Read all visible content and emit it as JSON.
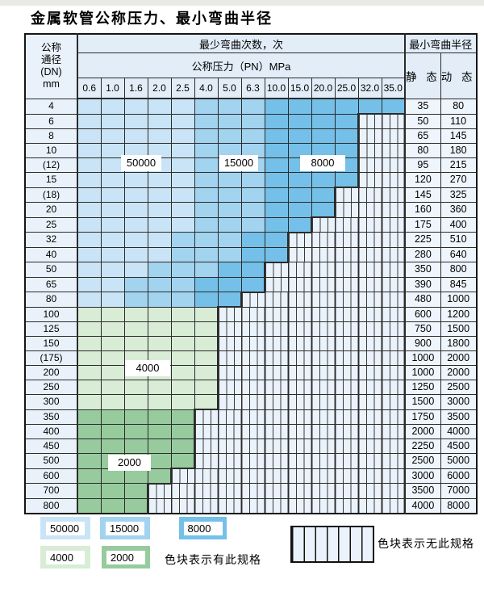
{
  "title": "金属软管公称压力、最小弯曲半径",
  "table": {
    "header": {
      "dn_lines": [
        "公称",
        "通径",
        "(DN)",
        "mm"
      ],
      "cycles": "最少弯曲次数，次",
      "pressure": "公称压力（PN）MPa",
      "radius": "最小弯曲半径",
      "static": "静 态",
      "dynamic": "动 态",
      "pressures": [
        "0.6",
        "1.0",
        "1.6",
        "2.0",
        "2.5",
        "4.0",
        "5.0",
        "6.3",
        "10.0",
        "15.0",
        "20.0",
        "25.0",
        "32.0",
        "35.0"
      ]
    },
    "cell_legend": {
      "L": "50000次区(浅蓝)",
      "M": "15000次区(中蓝)",
      "D": "8000次区(深蓝)",
      "G": "4000次区(浅绿)",
      "g": "2000次区(深绿)",
      "x": "无此规格(竖线)"
    },
    "rows": [
      {
        "dn": "4",
        "cells": "LLLLLMMMDDDDDD",
        "static": "35",
        "dynamic": "80"
      },
      {
        "dn": "6",
        "cells": "LLLLLMMMDDDDxx",
        "static": "50",
        "dynamic": "110"
      },
      {
        "dn": "8",
        "cells": "LLLLLMMMDDDDxx",
        "static": "65",
        "dynamic": "145"
      },
      {
        "dn": "10",
        "cells": "LLLLLMMMDDDDxx",
        "static": "80",
        "dynamic": "180"
      },
      {
        "dn": "(12)",
        "cells": "LLLLLMMMDDDDxx",
        "static": "95",
        "dynamic": "215"
      },
      {
        "dn": "15",
        "cells": "LLLLLMMMDDDDxx",
        "static": "120",
        "dynamic": "270"
      },
      {
        "dn": "(18)",
        "cells": "LLLLLMMMDDDxxx",
        "static": "145",
        "dynamic": "325"
      },
      {
        "dn": "20",
        "cells": "LLLLLMMMDDDxxx",
        "static": "160",
        "dynamic": "360"
      },
      {
        "dn": "25",
        "cells": "LLLLLMMMDDxxxx",
        "static": "175",
        "dynamic": "400"
      },
      {
        "dn": "32",
        "cells": "LLLLMMMDDxxxxx",
        "static": "225",
        "dynamic": "510"
      },
      {
        "dn": "40",
        "cells": "LLLLMMMDDxxxxx",
        "static": "280",
        "dynamic": "640"
      },
      {
        "dn": "50",
        "cells": "LLLMMMDDxxxxxx",
        "static": "350",
        "dynamic": "800"
      },
      {
        "dn": "65",
        "cells": "LLMMMDDDxxxxxx",
        "static": "390",
        "dynamic": "845"
      },
      {
        "dn": "80",
        "cells": "LLMMMDDxxxxxxx",
        "static": "480",
        "dynamic": "1000"
      },
      {
        "dn": "100",
        "cells": "GGGGGGxxxxxxxx",
        "static": "600",
        "dynamic": "1200"
      },
      {
        "dn": "125",
        "cells": "GGGGGGxxxxxxxx",
        "static": "750",
        "dynamic": "1500"
      },
      {
        "dn": "150",
        "cells": "GGGGGGxxxxxxxx",
        "static": "900",
        "dynamic": "1800"
      },
      {
        "dn": "(175)",
        "cells": "GGGGGGxxxxxxxx",
        "static": "1000",
        "dynamic": "2000"
      },
      {
        "dn": "200",
        "cells": "GGGGGGxxxxxxxx",
        "static": "1000",
        "dynamic": "2000"
      },
      {
        "dn": "250",
        "cells": "GGGGGGxxxxxxxx",
        "static": "1250",
        "dynamic": "2500"
      },
      {
        "dn": "300",
        "cells": "GGGGGGxxxxxxxx",
        "static": "1500",
        "dynamic": "3000"
      },
      {
        "dn": "350",
        "cells": "gggggxxxxxxxxx",
        "static": "1750",
        "dynamic": "3500"
      },
      {
        "dn": "400",
        "cells": "gggggxxxxxxxxx",
        "static": "2000",
        "dynamic": "4000"
      },
      {
        "dn": "450",
        "cells": "gggggxxxxxxxxx",
        "static": "2250",
        "dynamic": "4500"
      },
      {
        "dn": "500",
        "cells": "gggggxxxxxxxxx",
        "static": "2500",
        "dynamic": "5000"
      },
      {
        "dn": "600",
        "cells": "ggggxxxxxxxxxx",
        "static": "3000",
        "dynamic": "6000"
      },
      {
        "dn": "700",
        "cells": "gggxxxxxxxxxxx",
        "static": "3500",
        "dynamic": "7000"
      },
      {
        "dn": "800",
        "cells": "gggxxxxxxxxxxx",
        "static": "4000",
        "dynamic": "8000"
      }
    ]
  },
  "overlays": [
    {
      "text": "50000"
    },
    {
      "text": "15000"
    },
    {
      "text": "8000"
    },
    {
      "text": "4000"
    },
    {
      "text": "2000"
    }
  ],
  "legend": {
    "items": [
      {
        "label": "50000",
        "color": "#c9e4f6"
      },
      {
        "label": "15000",
        "color": "#a2d3ef"
      },
      {
        "label": "8000",
        "color": "#74c0e8"
      },
      {
        "label": "4000",
        "color": "#d8ecd6"
      },
      {
        "label": "2000",
        "color": "#97cb9d"
      }
    ],
    "has_text": "色块表示有此规格",
    "none_text": "色块表示无此规格"
  },
  "colors": {
    "blue_50000": "#c9e4f6",
    "blue_15000": "#a2d3ef",
    "blue_8000": "#74c0e8",
    "green_4000": "#d8ecd6",
    "green_2000": "#97cb9d",
    "hatch_bg": "#eaf2fb",
    "header_bg": "#e2edf8",
    "label_bg": "#e9f2fb",
    "grid_line": "#2b2b2b",
    "page_bg": "#ffffff"
  }
}
